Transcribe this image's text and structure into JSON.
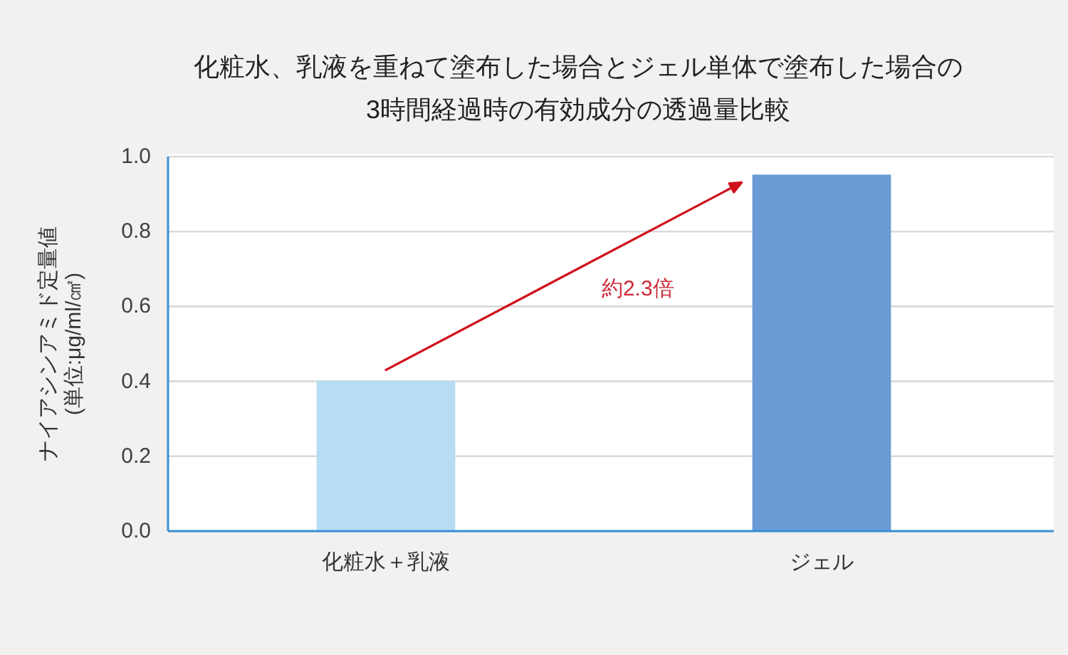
{
  "chart_data": {
    "type": "bar",
    "title": "化粧水、乳液を重ねて塗布した場合とジェル単体で塗布した場合の\n3時間経過時の有効成分の透過量比較",
    "ylabel": "ナイアシンアミド定量値\n(単位:μg/ml/㎠)",
    "categories": [
      "化粧水＋乳液",
      "ジェル"
    ],
    "values": [
      0.4,
      0.95
    ],
    "colors": [
      "#b8dcf4",
      "#6a9bd4"
    ],
    "ylim": [
      0,
      1
    ],
    "yticks": [
      {
        "value": 0,
        "label": "0.0"
      },
      0.2,
      0.4,
      0.6,
      0.8,
      {
        "value": 1,
        "label": "1.0"
      }
    ],
    "grid": "y",
    "annotations": [
      "約2.3倍"
    ]
  }
}
